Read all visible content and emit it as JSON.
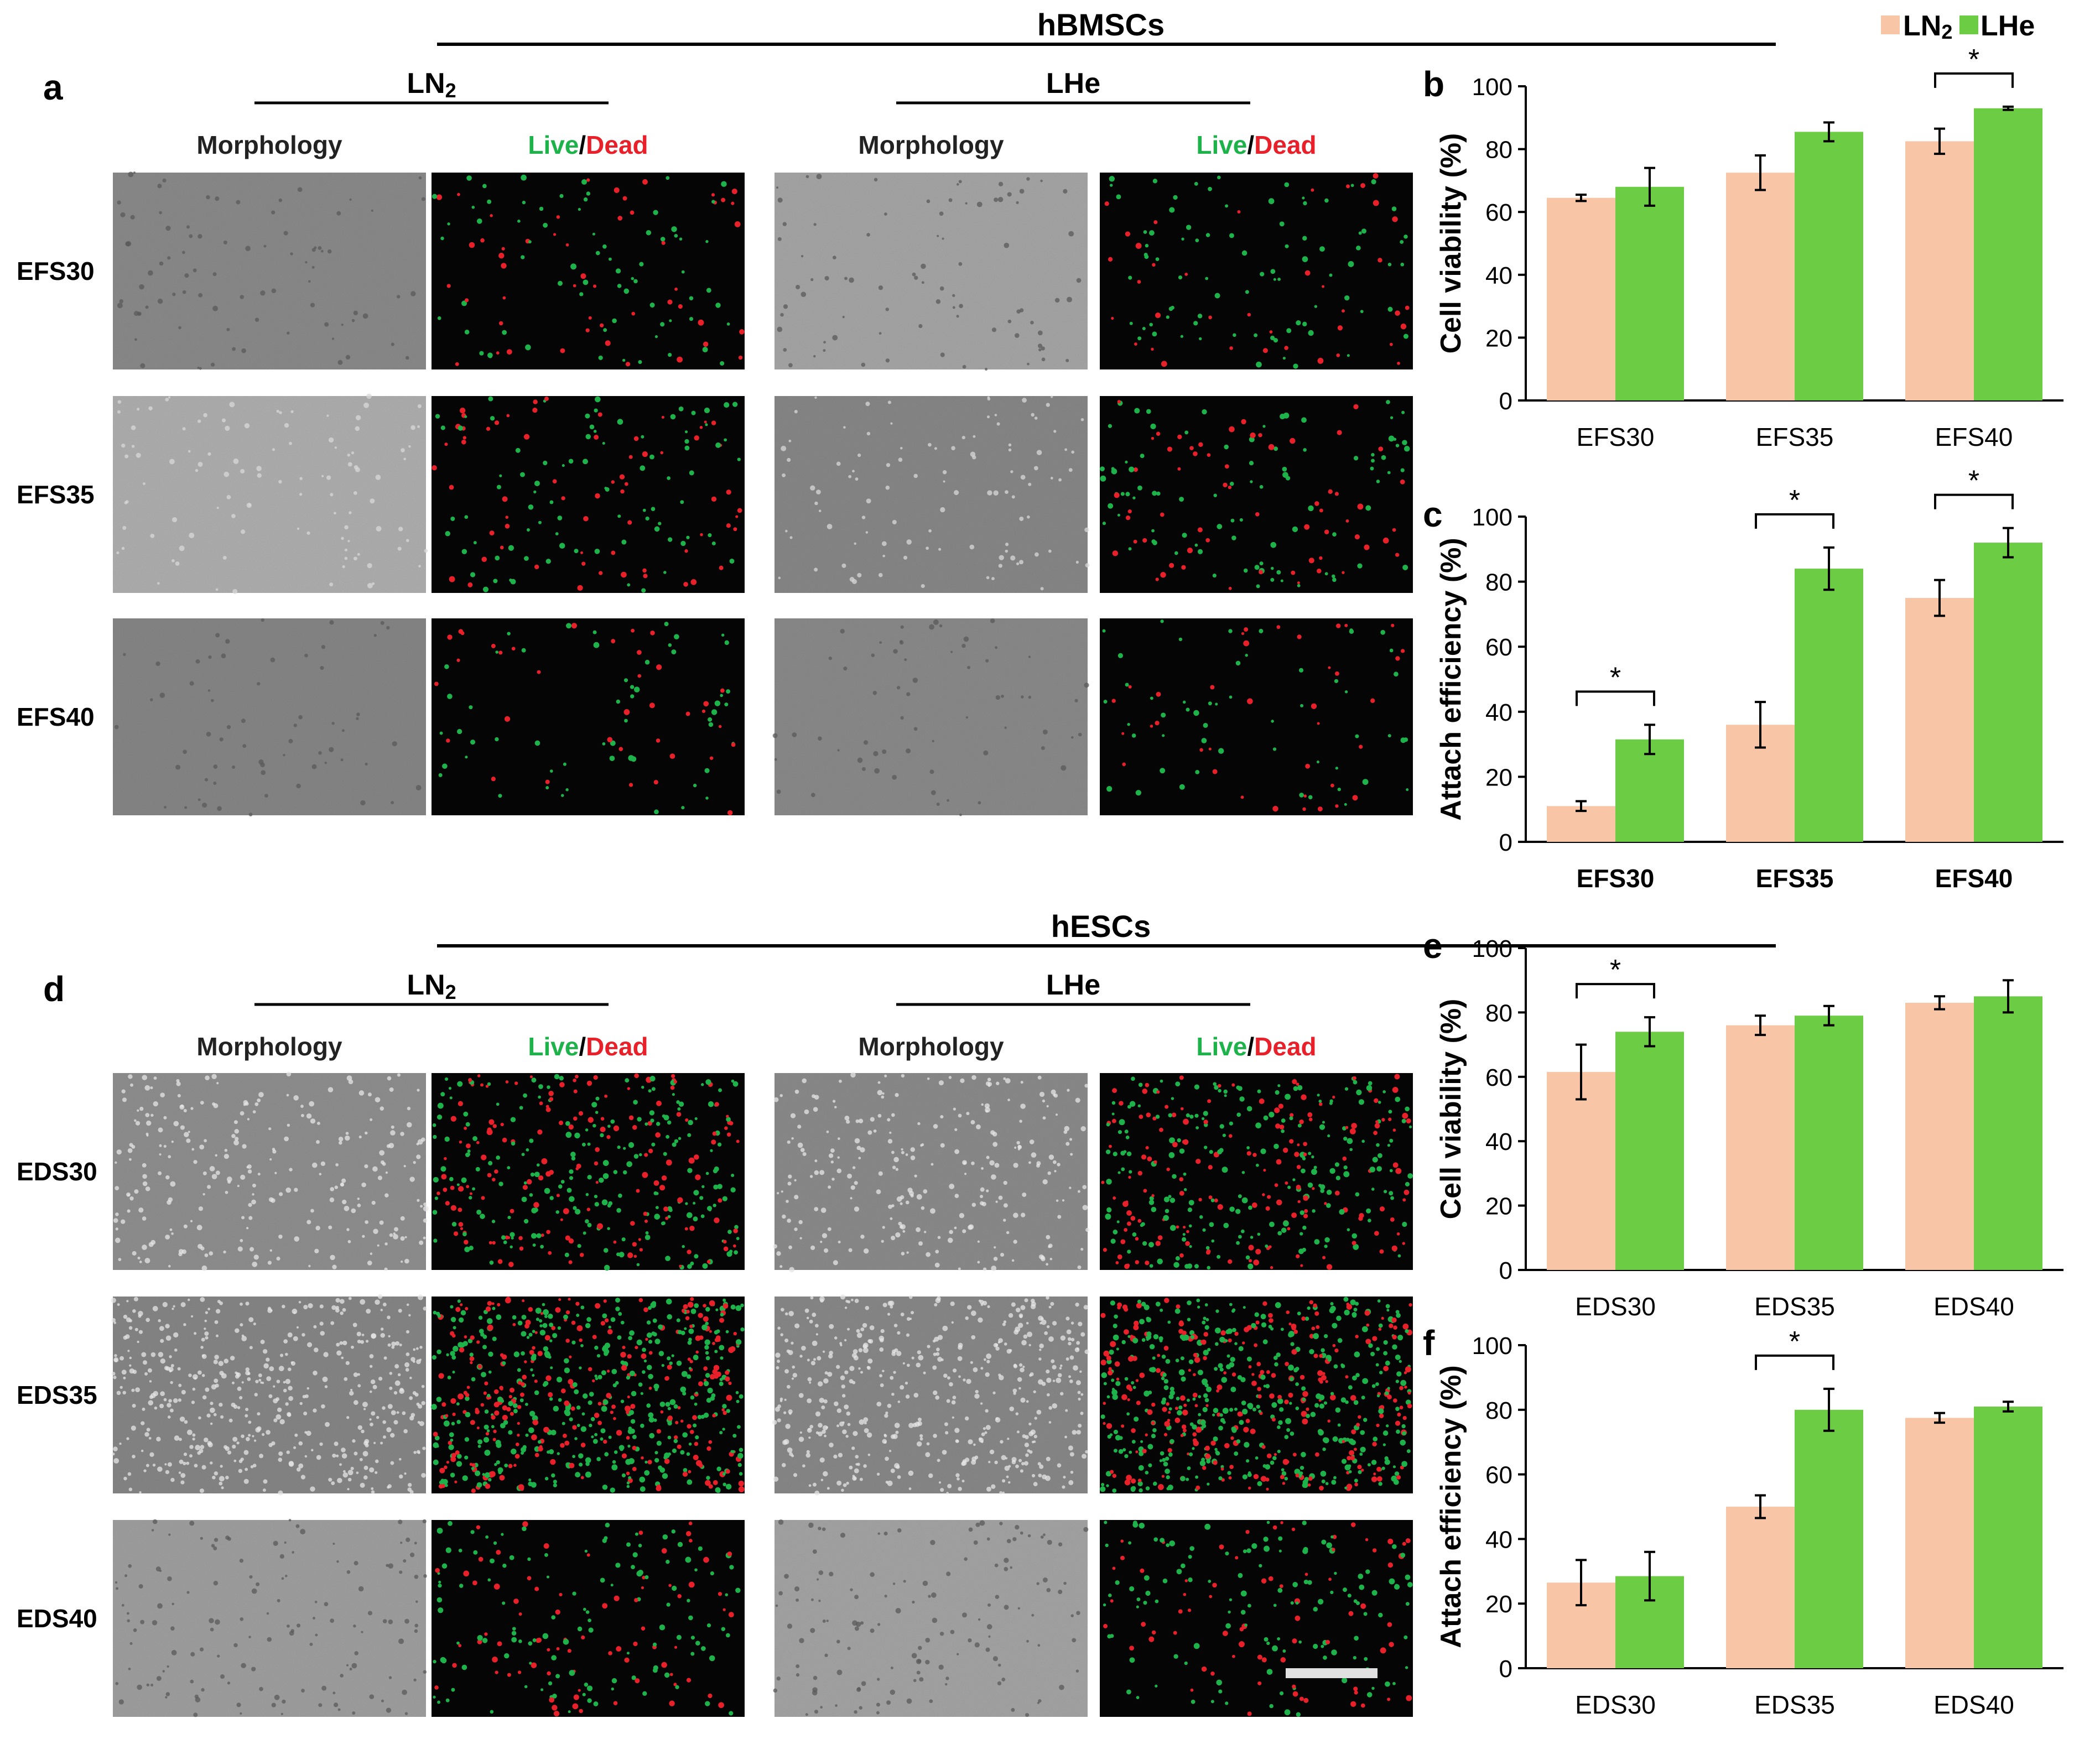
{
  "colors": {
    "ln2": "#f8c6a6",
    "lhe": "#6ccc44",
    "live": "#1db34a",
    "dead": "#e8202a"
  },
  "legend": {
    "ln2": "LN",
    "ln2_sub": "2",
    "lhe": "LHe"
  },
  "sections": [
    {
      "title": "hBMSCs",
      "panel_letter": "a",
      "groups": [
        {
          "label": "LN",
          "sub": "2",
          "morph": "Morphology",
          "live": "Live",
          "slash": "/",
          "dead": "Dead"
        },
        {
          "label": "LHe",
          "sub": "",
          "morph": "Morphology",
          "live": "Live",
          "slash": "/",
          "dead": "Dead"
        }
      ],
      "rows": [
        "EFS30",
        "EFS35",
        "EFS40"
      ]
    },
    {
      "title": "hESCs",
      "panel_letter": "d",
      "groups": [
        {
          "label": "LN",
          "sub": "2",
          "morph": "Morphology",
          "live": "Live",
          "slash": "/",
          "dead": "Dead"
        },
        {
          "label": "LHe",
          "sub": "",
          "morph": "Morphology",
          "live": "Live",
          "slash": "/",
          "dead": "Dead"
        }
      ],
      "rows": [
        "EDS30",
        "EDS35",
        "EDS40"
      ]
    }
  ],
  "chart_data": [
    {
      "panel": "b",
      "type": "bar",
      "ylabel": "Cell viability (%)",
      "ylim": [
        0,
        100
      ],
      "yticks": [
        0,
        20,
        40,
        60,
        80,
        100
      ],
      "categories": [
        "EFS30",
        "EFS35",
        "EFS40"
      ],
      "series": [
        {
          "name": "LN2",
          "values": [
            64.5,
            72.5,
            82.5
          ],
          "errors": [
            1.0,
            5.5,
            4.0
          ]
        },
        {
          "name": "LHe",
          "values": [
            68,
            85.5,
            93
          ],
          "errors": [
            6,
            3,
            0.5
          ]
        }
      ],
      "significance": [
        {
          "category": 2,
          "label": "*"
        }
      ]
    },
    {
      "panel": "c",
      "type": "bar",
      "ylabel": "Attach efficiency (%)",
      "ylim": [
        0,
        100
      ],
      "yticks": [
        0,
        20,
        40,
        60,
        80,
        100
      ],
      "categories": [
        "EFS30",
        "EFS35",
        "EFS40"
      ],
      "series": [
        {
          "name": "LN2",
          "values": [
            11,
            36,
            75
          ],
          "errors": [
            1.5,
            7,
            5.5
          ]
        },
        {
          "name": "LHe",
          "values": [
            31.5,
            84,
            92
          ],
          "errors": [
            4.5,
            6.5,
            4.5
          ]
        }
      ],
      "significance": [
        {
          "category": 0,
          "label": "*"
        },
        {
          "category": 1,
          "label": "*"
        },
        {
          "category": 2,
          "label": "*"
        }
      ]
    },
    {
      "panel": "e",
      "type": "bar",
      "ylabel": "Cell viability (%)",
      "ylim": [
        0,
        100
      ],
      "yticks": [
        0,
        20,
        40,
        60,
        80,
        100
      ],
      "categories": [
        "EDS30",
        "EDS35",
        "EDS40"
      ],
      "series": [
        {
          "name": "LN2",
          "values": [
            61.5,
            76,
            83
          ],
          "errors": [
            8.5,
            3,
            2
          ]
        },
        {
          "name": "LHe",
          "values": [
            74,
            79,
            85
          ],
          "errors": [
            4.5,
            3,
            5
          ]
        }
      ],
      "significance": [
        {
          "category": 0,
          "label": "*"
        }
      ]
    },
    {
      "panel": "f",
      "type": "bar",
      "ylabel": "Attach efficiency (%)",
      "ylim": [
        0,
        100
      ],
      "yticks": [
        0,
        20,
        40,
        60,
        80,
        100
      ],
      "categories": [
        "EDS30",
        "EDS35",
        "EDS40"
      ],
      "series": [
        {
          "name": "LN2",
          "values": [
            26.5,
            50,
            77.5
          ],
          "errors": [
            7,
            3.5,
            1.5
          ]
        },
        {
          "name": "LHe",
          "values": [
            28.5,
            80,
            81
          ],
          "errors": [
            7.5,
            6.5,
            1.5
          ]
        }
      ],
      "significance": [
        {
          "category": 1,
          "label": "*"
        }
      ]
    }
  ]
}
